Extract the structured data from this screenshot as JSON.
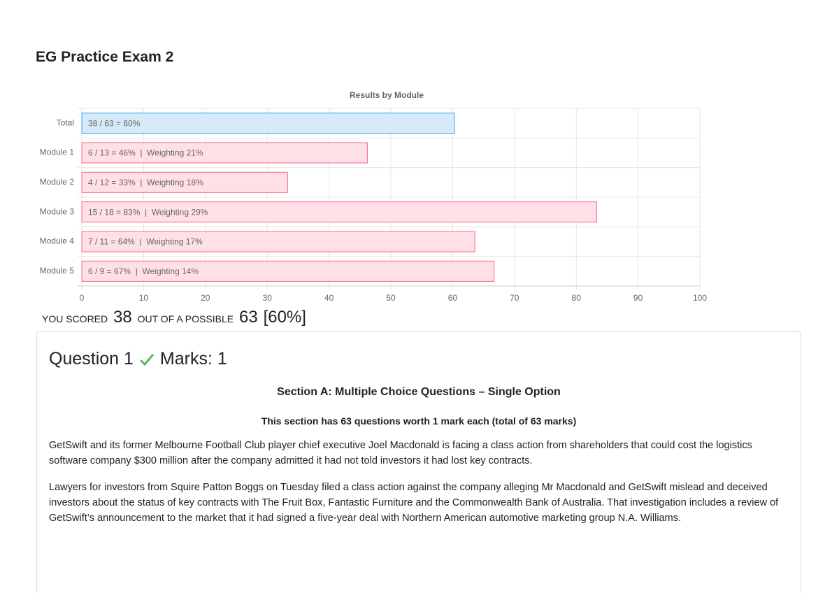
{
  "page_title": "EG Practice Exam 2",
  "chart_data": {
    "type": "bar",
    "orientation": "horizontal",
    "title": "Results by Module",
    "categories": [
      "Total",
      "Module 1",
      "Module 2",
      "Module 3",
      "Module 4",
      "Module 5"
    ],
    "values": [
      60.3,
      46.2,
      33.3,
      83.3,
      63.6,
      66.7
    ],
    "value_labels": [
      "38 / 63 = 60%",
      "6 / 13 = 46%  |  Weighting 21%",
      "4 / 12 = 33%  |  Weighting 18%",
      "15 / 18 = 83%  |  Weighting 29%",
      "7 / 11 = 64%  |  Weighting 17%",
      "6 / 9 = 67%  |  Weighting 14%"
    ],
    "colors": [
      "#36a2eb",
      "#ff6384",
      "#ff6384",
      "#ff6384",
      "#ff6384",
      "#ff6384"
    ],
    "fills": [
      "#d7eaf9",
      "#ffe0e6",
      "#ffe0e6",
      "#ffe0e6",
      "#ffe0e6",
      "#ffe0e6"
    ],
    "xlim": [
      0,
      100
    ],
    "xticks": [
      0,
      10,
      20,
      30,
      40,
      50,
      60,
      70,
      80,
      90,
      100
    ],
    "grid": true
  },
  "score": {
    "prefix": "YOU SCORED",
    "scored": "38",
    "middle": "OUT OF A POSSIBLE",
    "possible": "63",
    "percent": "[60%]"
  },
  "question": {
    "title": "Question 1",
    "marks": "Marks: 1",
    "section": "Section A: Multiple Choice Questions – Single Option",
    "subsection": "This section has 63 questions worth 1 mark each (total of 63 marks)",
    "paragraphs": [
      "GetSwift and its former Melbourne Football Club player chief executive Joel Macdonald is facing a class action from shareholders that could cost the logistics software company $300 million after the company admitted it had not told investors it had lost key contracts.",
      "Lawyers for investors from Squire Patton Boggs on Tuesday filed a class action against the company alleging Mr Macdonald and GetSwift mislead and deceived investors about the status of key contracts with The Fruit Box, Fantastic Furniture and the Commonwealth Bank of Australia. That investigation includes a review of GetSwift’s announcement to the market that it had signed a five-year deal with Northern American automotive marketing group N.A. Williams."
    ]
  }
}
